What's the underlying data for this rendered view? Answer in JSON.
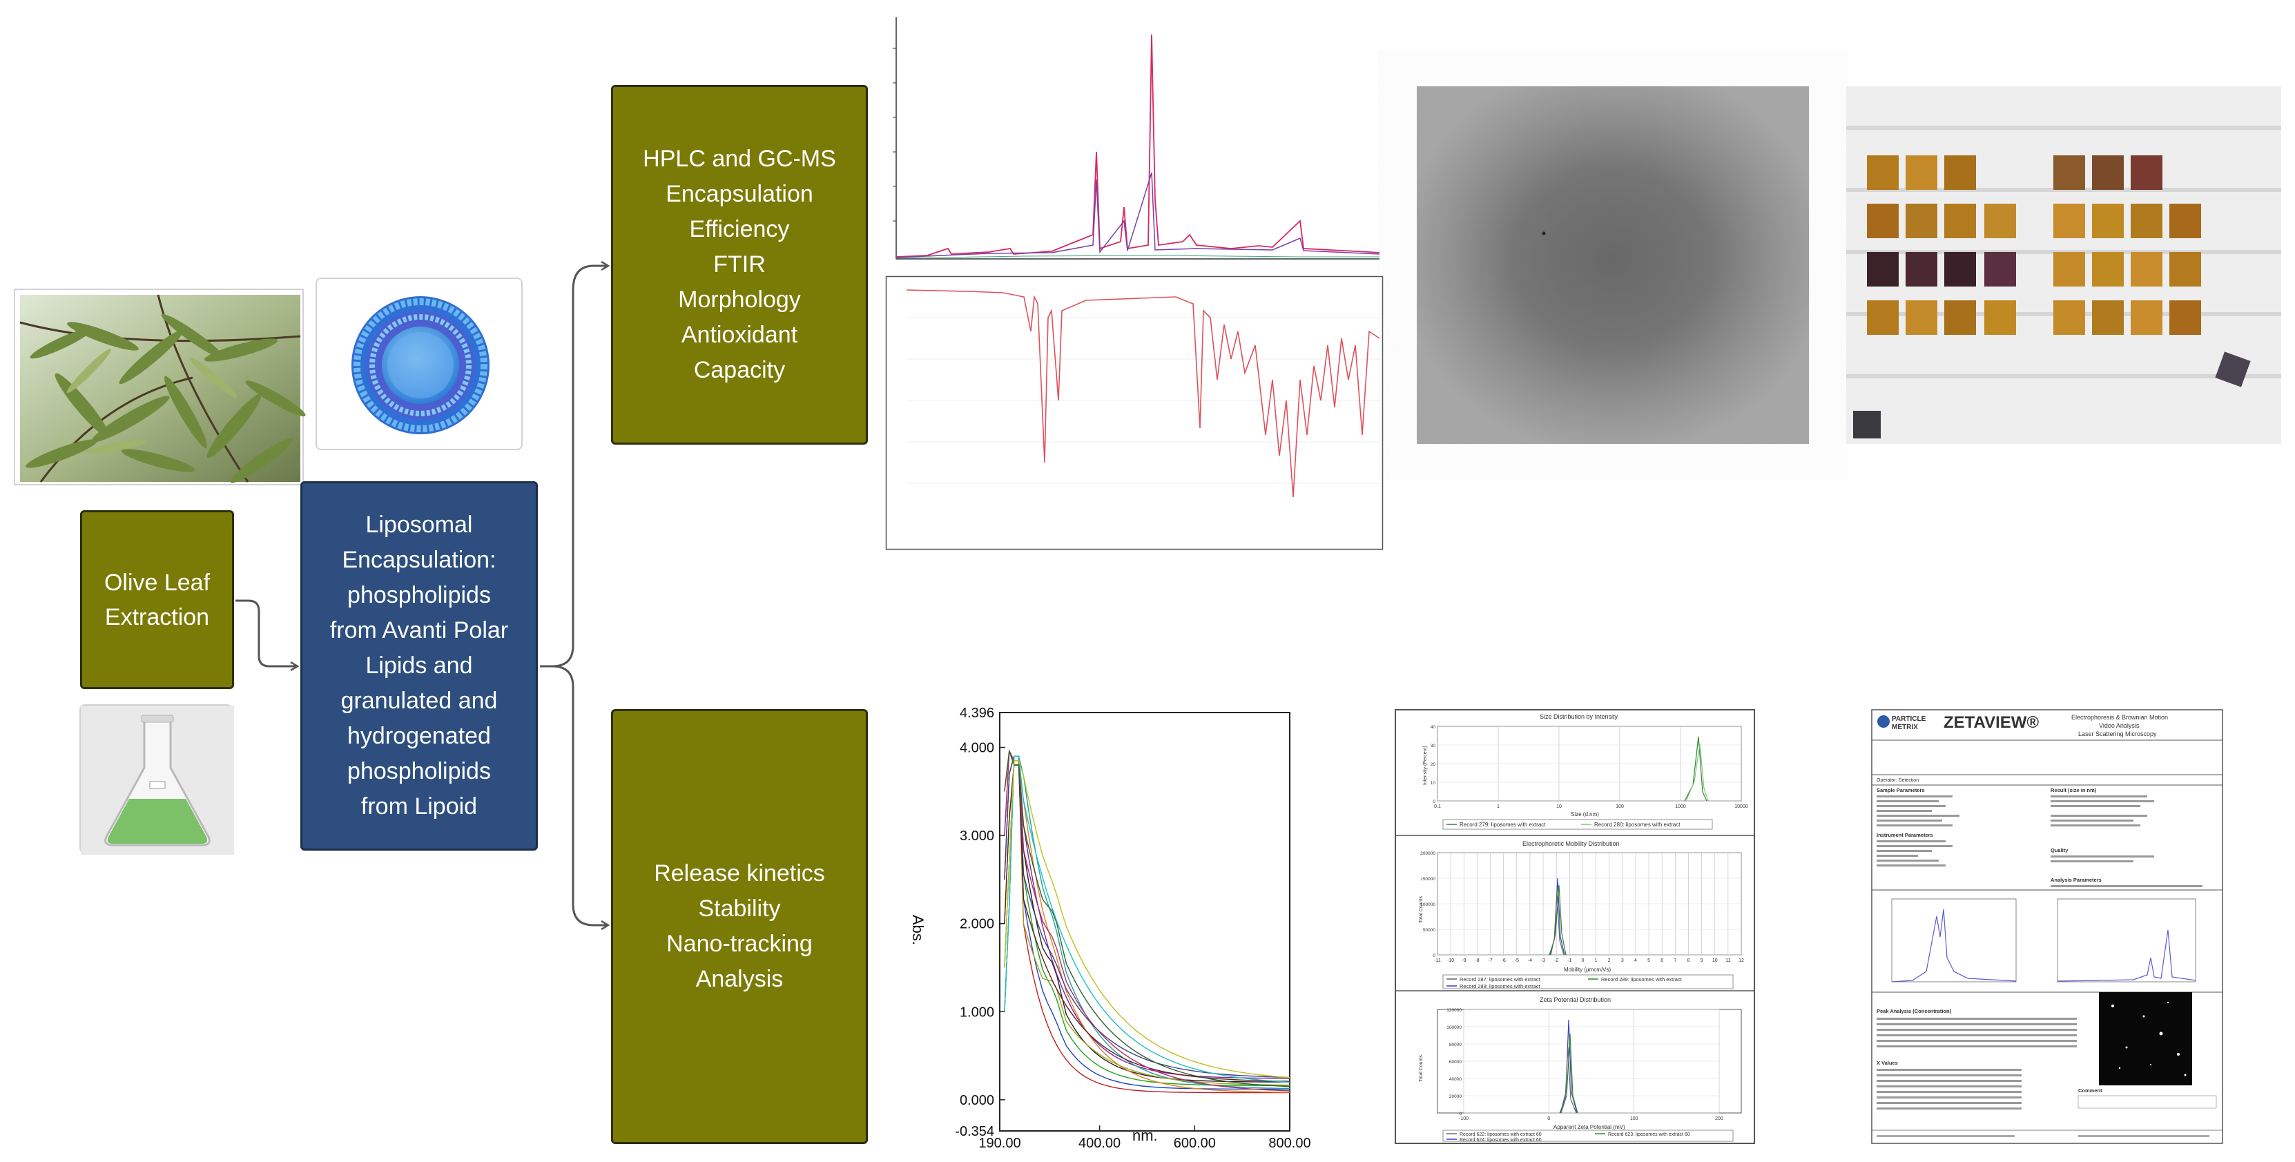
{
  "boxes": {
    "extraction": "Olive Leaf\nExtraction",
    "encapsulation": "Liposomal\nEncapsulation:\nphospholipids\nfrom Avanti Polar\nLipids and\ngranulated and\nhydrogenated\nphospholipids\nfrom Lipoid",
    "characterization": "HPLC and GC-MS\nEncapsulation\nEfficiency\nFTIR\nMorphology\nAntioxidant\nCapacity",
    "release": "Release kinetics\nStability\nNano-tracking\nAnalysis"
  },
  "uv_chart": {
    "ylabel": "Abs.",
    "xlabel": "nm.",
    "y_ticks": [
      "4.396",
      "4.000",
      "3.000",
      "2.000",
      "1.000",
      "0.000",
      "-0.354"
    ],
    "x_ticks": [
      "190.00",
      "400.00",
      "600.00",
      "800.00"
    ]
  },
  "dls_report": {
    "size_title": "Size Distribution by Intensity",
    "size_x_ticks": [
      "0.1",
      "1",
      "10",
      "100",
      "1000",
      "10000"
    ],
    "size_xlabel": "Size (d.nm)",
    "size_ylabel": "Intensity (Percent)",
    "size_legend": [
      "Record 279: liposomes with extract",
      "Record 280: liposomes with extract"
    ],
    "mobility_title": "Electrophoretic Mobility Distribution",
    "mobility_x_ticks": [
      "-11",
      "-10",
      "-9",
      "-8",
      "-7",
      "-6",
      "-5",
      "-4",
      "-3",
      "-2",
      "-1",
      "0",
      "1",
      "2",
      "3",
      "4",
      "5",
      "6",
      "7",
      "8",
      "9",
      "10",
      "11",
      "12"
    ],
    "mobility_xlabel": "Mobility (μmcm/Vs)",
    "mobility_ylabel": "Total Counts",
    "mobility_legend": [
      "Record 287: liposomes with extract",
      "Record 288: liposomes with extract",
      "Record 289: liposomes with extract"
    ],
    "zeta_title": "Zeta Potential Distribution",
    "zeta_x_ticks": [
      "-100",
      "0",
      "100",
      "200"
    ],
    "zeta_xlabel": "Apparent Zeta Potential (mV)",
    "zeta_ylabel": "Total Counts",
    "zeta_legend": [
      "Record 622: liposomes with extract 60",
      "Record 623: liposomes with extract 60",
      "Record 624: liposomes with extract 60"
    ],
    "y_ticks_counts": [
      "200000",
      "150000",
      "100000",
      "50000",
      "0"
    ],
    "y_ticks_zeta": [
      "120000",
      "100000",
      "80000",
      "60000",
      "40000",
      "20000",
      "0"
    ],
    "y_ticks_size": [
      "40",
      "30",
      "20",
      "10",
      "0"
    ]
  },
  "zetaview_report": {
    "brand_top": "PARTICLE",
    "brand_bottom": "METRIX",
    "product": "ZETAVIEW®",
    "subtitle_1": "Electrophoresis & Brownian Motion",
    "subtitle_2": "Video Analysis",
    "subtitle_3": "Laser Scattering Microscopy",
    "operator": "Operator: Detection",
    "sample_params": "Sample Parameters",
    "result_size": "Result (size in nm)",
    "instrument_params": "Instrument Parameters",
    "quality": "Quality",
    "analysis_params": "Analysis Parameters",
    "peak_analysis": "Peak Analysis (Concentration)",
    "x_values": "X Values",
    "comment": "Comment"
  }
}
